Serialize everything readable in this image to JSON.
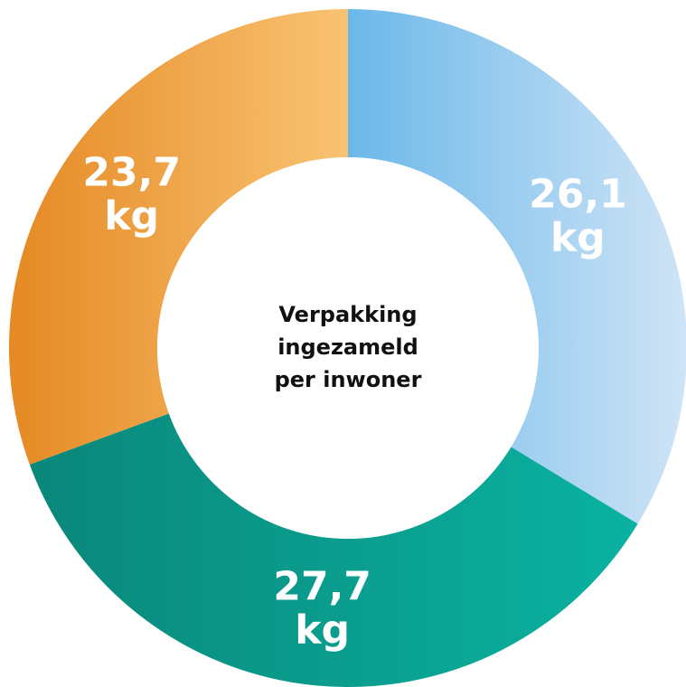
{
  "chart_data": {
    "type": "donut",
    "center_label": [
      "Verpakking",
      "ingezameld",
      "per inwoner"
    ],
    "values": [
      26.1,
      27.7,
      23.7
    ],
    "value_labels": [
      "26,1 kg",
      "27,7 kg",
      "23,7 kg"
    ],
    "colors": [
      [
        "#6bb8ea",
        "#cfe4f6"
      ],
      [
        "#0a877a",
        "#0ab2a1"
      ],
      [
        "#e58923",
        "#f9c373"
      ]
    ]
  }
}
